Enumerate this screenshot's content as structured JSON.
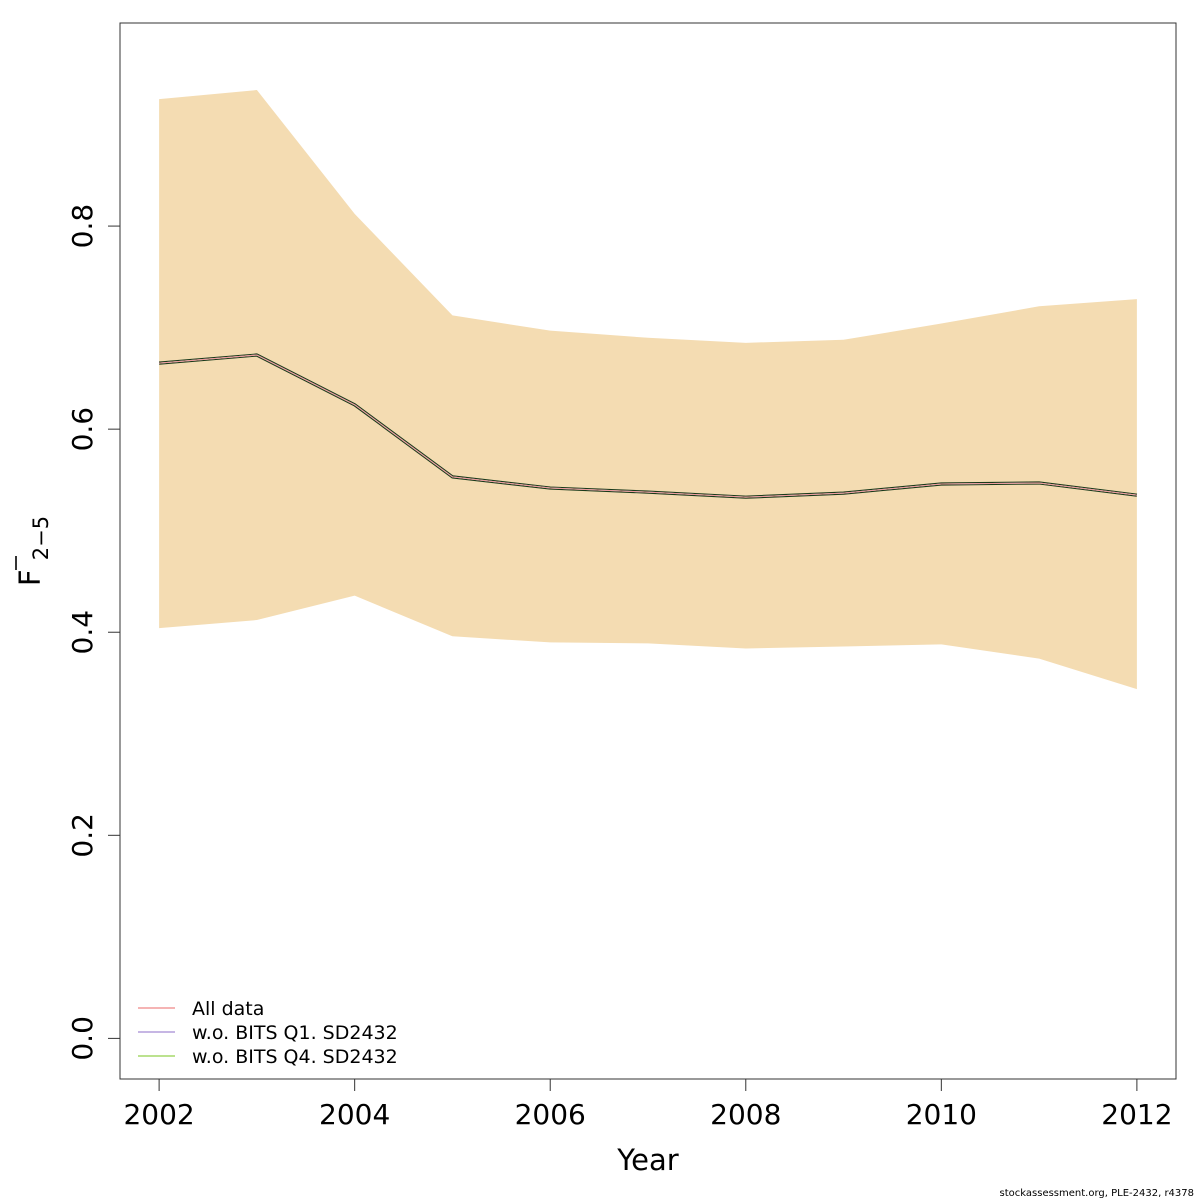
{
  "chart_data": {
    "type": "line",
    "title": "",
    "xlabel": "Year",
    "ylabel_main": "F",
    "ylabel_sub": "2−5",
    "xlim": [
      2001.6,
      2012.4
    ],
    "ylim": [
      -0.04,
      1.0
    ],
    "x_ticks": [
      2002,
      2004,
      2006,
      2008,
      2010,
      2012
    ],
    "x_tick_labels": [
      "2002",
      "2004",
      "2006",
      "2008",
      "2010",
      "2012"
    ],
    "y_ticks": [
      0.0,
      0.2,
      0.4,
      0.6,
      0.8
    ],
    "y_tick_labels": [
      "0.0",
      "0.2",
      "0.4",
      "0.6",
      "0.8"
    ],
    "grid": false,
    "legend_position": "bottom-left",
    "x": [
      2002,
      2003,
      2004,
      2005,
      2006,
      2007,
      2008,
      2009,
      2010,
      2011,
      2012
    ],
    "band": {
      "upper": [
        0.925,
        0.934,
        0.812,
        0.712,
        0.697,
        0.69,
        0.685,
        0.688,
        0.704,
        0.721,
        0.728
      ],
      "lower": [
        0.404,
        0.412,
        0.436,
        0.396,
        0.39,
        0.389,
        0.384,
        0.386,
        0.388,
        0.374,
        0.344
      ],
      "color": "#f4dcb2"
    },
    "series": [
      {
        "name": "w.o. BITS Q4. SD2432",
        "color": "#a6d96a",
        "values": [
          0.665,
          0.673,
          0.624,
          0.553,
          0.542,
          0.538,
          0.533,
          0.537,
          0.546,
          0.547,
          0.535
        ]
      },
      {
        "name": "w.o. BITS Q1. SD2432",
        "color": "#b39ddb",
        "values": [
          0.665,
          0.673,
          0.624,
          0.553,
          0.542,
          0.538,
          0.533,
          0.537,
          0.546,
          0.547,
          0.535
        ]
      },
      {
        "name": "All data",
        "color": "#f29c9c",
        "values": [
          0.665,
          0.673,
          0.624,
          0.553,
          0.542,
          0.538,
          0.533,
          0.537,
          0.546,
          0.547,
          0.535
        ]
      }
    ],
    "main_line_color": "#1a3a1a",
    "legend": [
      {
        "label": "All data",
        "color": "#f29c9c"
      },
      {
        "label": "w.o. BITS Q1. SD2432",
        "color": "#b39ddb"
      },
      {
        "label": "w.o. BITS Q4. SD2432",
        "color": "#a6d96a"
      }
    ]
  },
  "footer": {
    "credit": "stockassessment.org, PLE-2432, r4378"
  }
}
